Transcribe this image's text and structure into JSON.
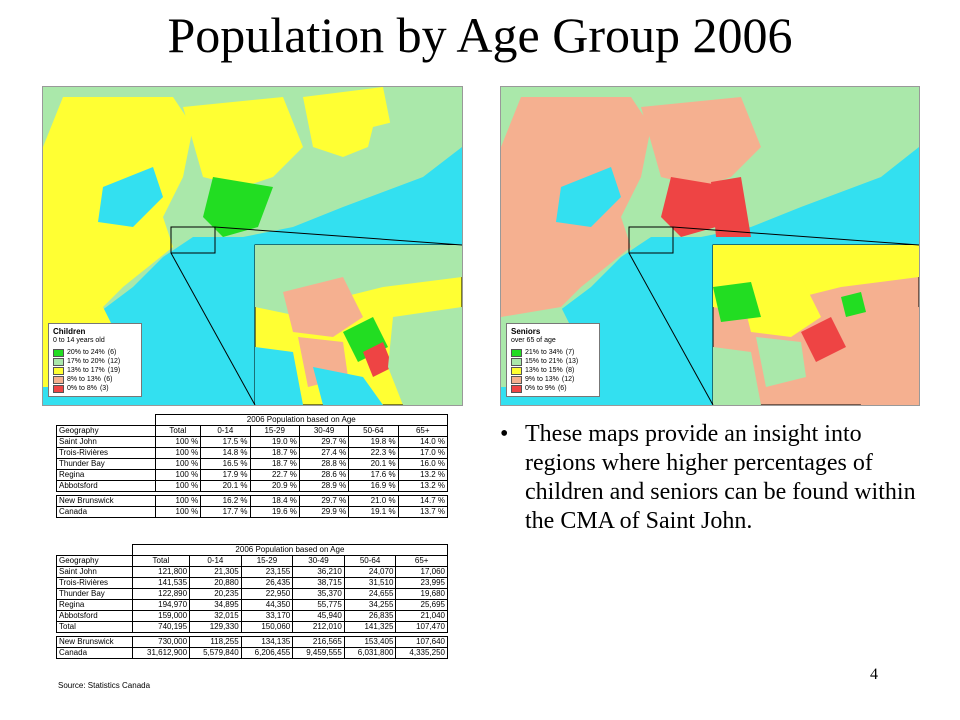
{
  "title": "Population by Age Group 2006",
  "colors": {
    "water": "#33e0f0",
    "high": "#22dd22",
    "midhigh": "#aae8aa",
    "mid": "#ffff33",
    "midlow": "#f5b090",
    "low": "#ee4444"
  },
  "map_left": {
    "legend_title": "Children",
    "legend_subtitle": "0 to 14 years old",
    "legend_items": [
      {
        "label": "20% to 24%",
        "count": "(6)",
        "color": "#22dd22"
      },
      {
        "label": "17% to 20%",
        "count": "(12)",
        "color": "#aae8aa"
      },
      {
        "label": "13% to 17%",
        "count": "(19)",
        "color": "#ffff33"
      },
      {
        "label": "8% to 13%",
        "count": "(6)",
        "color": "#f5b090"
      },
      {
        "label": "0% to 8%",
        "count": "(3)",
        "color": "#ee4444"
      }
    ]
  },
  "map_right": {
    "legend_title": "Seniors",
    "legend_subtitle": "over 65 of age",
    "legend_items": [
      {
        "label": "21% to 34%",
        "count": "(7)",
        "color": "#22dd22"
      },
      {
        "label": "15% to 21%",
        "count": "(13)",
        "color": "#aae8aa"
      },
      {
        "label": "13% to 15%",
        "count": "(8)",
        "color": "#ffff33"
      },
      {
        "label": "9% to 13%",
        "count": "(12)",
        "color": "#f5b090"
      },
      {
        "label": "0% to 9%",
        "count": "(6)",
        "color": "#ee4444"
      }
    ]
  },
  "table_pct": {
    "caption": "2006 Population based on Age",
    "headers": [
      "Geography",
      "Total",
      "0-14",
      "15-29",
      "30-49",
      "50-64",
      "65+"
    ],
    "rows": [
      [
        "Saint John",
        "100 %",
        "17.5 %",
        "19.0 %",
        "29.7 %",
        "19.8 %",
        "14.0 %"
      ],
      [
        "Trois-Rivières",
        "100 %",
        "14.8 %",
        "18.7 %",
        "27.4 %",
        "22.3 %",
        "17.0 %"
      ],
      [
        "Thunder Bay",
        "100 %",
        "16.5 %",
        "18.7 %",
        "28.8 %",
        "20.1 %",
        "16.0 %"
      ],
      [
        "Regina",
        "100 %",
        "17.9 %",
        "22.7 %",
        "28.6 %",
        "17.6 %",
        "13.2 %"
      ],
      [
        "Abbotsford",
        "100 %",
        "20.1 %",
        "20.9 %",
        "28.9 %",
        "16.9 %",
        "13.2 %"
      ]
    ],
    "rows2": [
      [
        "New Brunswick",
        "100 %",
        "16.2 %",
        "18.4 %",
        "29.7 %",
        "21.0 %",
        "14.7 %"
      ],
      [
        "Canada",
        "100 %",
        "17.7 %",
        "19.6 %",
        "29.9 %",
        "19.1 %",
        "13.7 %"
      ]
    ]
  },
  "table_abs": {
    "caption": "2006 Population based on Age",
    "headers": [
      "Geography",
      "Total",
      "0-14",
      "15-29",
      "30-49",
      "50-64",
      "65+"
    ],
    "rows": [
      [
        "Saint John",
        "121,800",
        "21,305",
        "23,155",
        "36,210",
        "24,070",
        "17,060"
      ],
      [
        "Trois-Rivières",
        "141,535",
        "20,880",
        "26,435",
        "38,715",
        "31,510",
        "23,995"
      ],
      [
        "Thunder Bay",
        "122,890",
        "20,235",
        "22,950",
        "35,370",
        "24,655",
        "19,680"
      ],
      [
        "Regina",
        "194,970",
        "34,895",
        "44,350",
        "55,775",
        "34,255",
        "25,695"
      ],
      [
        "Abbotsford",
        "159,000",
        "32,015",
        "33,170",
        "45,940",
        "26,835",
        "21,040"
      ],
      [
        "Total",
        "740,195",
        "129,330",
        "150,060",
        "212,010",
        "141,325",
        "107,470"
      ]
    ],
    "rows2": [
      [
        "New Brunswick",
        "730,000",
        "118,255",
        "134,135",
        "216,565",
        "153,405",
        "107,640"
      ],
      [
        "Canada",
        "31,612,900",
        "5,579,840",
        "6,206,455",
        "9,459,555",
        "6,031,800",
        "4,335,250"
      ]
    ]
  },
  "source": "Source: Statistics Canada",
  "bullet_text": "These maps provide an insight into regions where higher percentages of children and seniors can be found within the CMA of Saint John.",
  "page_number": "4"
}
